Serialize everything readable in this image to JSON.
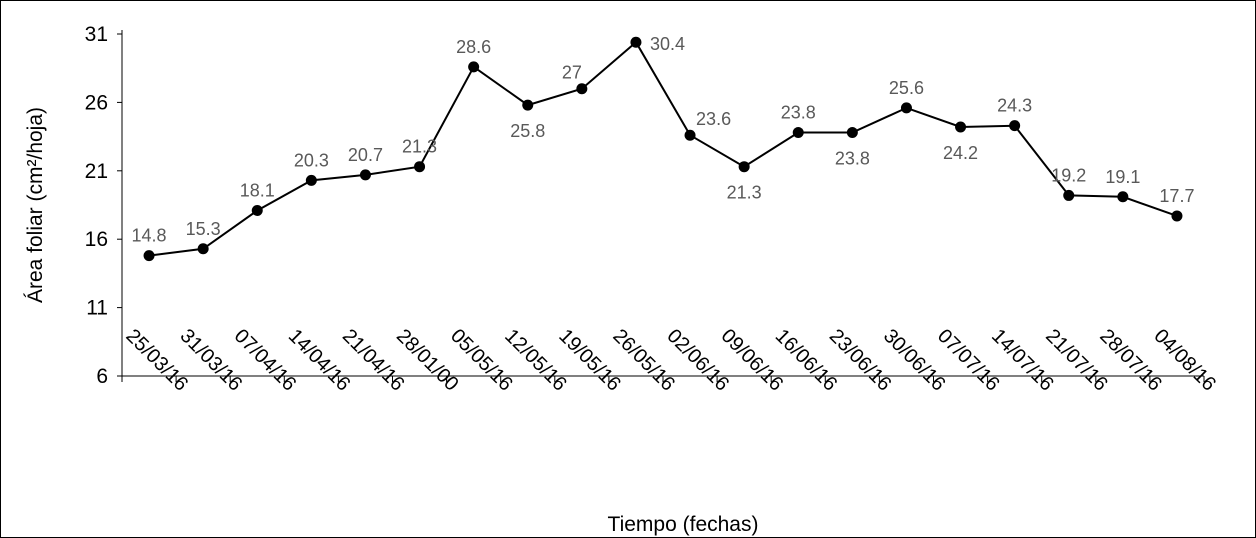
{
  "chart_data": {
    "type": "line",
    "title": "",
    "xlabel": "Tiempo (fechas)",
    "ylabel": "Área foliar (cm²/hoja)",
    "ylim": [
      6,
      31
    ],
    "yticks": [
      6,
      11,
      16,
      21,
      26,
      31
    ],
    "grid": false,
    "legend": "none",
    "line_color": "#000000",
    "categories": [
      "25/03/16",
      "31/03/16",
      "07/04/16",
      "14/04/16",
      "21/04/16",
      "28/01/00",
      "05/05/16",
      "12/05/16",
      "19/05/16",
      "26/05/16",
      "02/06/16",
      "09/06/16",
      "16/06/16",
      "23/06/16",
      "30/06/16",
      "07/07/16",
      "14/07/16",
      "21/07/16",
      "28/07/16",
      "04/08/16"
    ],
    "values": [
      14.8,
      15.3,
      18.1,
      20.3,
      20.7,
      21.3,
      28.6,
      25.8,
      27,
      30.4,
      23.6,
      21.3,
      23.8,
      23.8,
      25.6,
      24.2,
      24.3,
      19.2,
      19.1,
      17.7
    ],
    "data_labels": [
      "14.8",
      "15.3",
      "18.1",
      "20.3",
      "20.7",
      "21.3",
      "28.6",
      "25.8",
      "27",
      "30.4",
      "23.6",
      "21.3",
      "23.8",
      "23.8",
      "25.6",
      "24.2",
      "24.3",
      "19.2",
      "19.1",
      "17.7"
    ]
  }
}
